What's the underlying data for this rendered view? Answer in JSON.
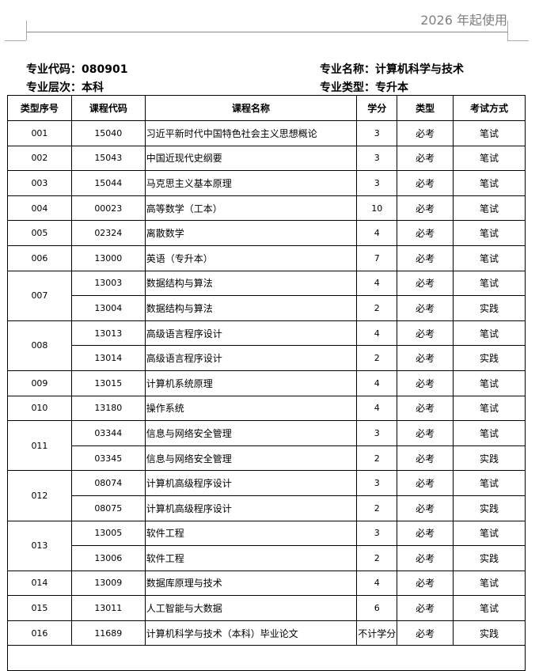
{
  "header": {
    "text": "2026 年起使用"
  },
  "meta": {
    "code_label": "专业代码：",
    "code": "080901",
    "name_label": "专业名称：",
    "name": "计算机科学与技术",
    "level_label": "专业层次：",
    "level": "本科",
    "type_label": "专业类型：",
    "type": "专升本"
  },
  "table": {
    "columns": [
      "类型序号",
      "课程代码",
      "课程名称",
      "学分",
      "类型",
      "考试方式"
    ],
    "groups": [
      {
        "seq": "001",
        "courses": [
          {
            "code": "15040",
            "name": "习近平新时代中国特色社会主义思想概论",
            "credit": "3",
            "type": "必考",
            "exam": "笔试"
          }
        ]
      },
      {
        "seq": "002",
        "courses": [
          {
            "code": "15043",
            "name": "中国近现代史纲要",
            "credit": "3",
            "type": "必考",
            "exam": "笔试"
          }
        ]
      },
      {
        "seq": "003",
        "courses": [
          {
            "code": "15044",
            "name": "马克思主义基本原理",
            "credit": "3",
            "type": "必考",
            "exam": "笔试"
          }
        ]
      },
      {
        "seq": "004",
        "courses": [
          {
            "code": "00023",
            "name": "高等数学（工本）",
            "credit": "10",
            "type": "必考",
            "exam": "笔试"
          }
        ]
      },
      {
        "seq": "005",
        "courses": [
          {
            "code": "02324",
            "name": "离散数学",
            "credit": "4",
            "type": "必考",
            "exam": "笔试"
          }
        ]
      },
      {
        "seq": "006",
        "courses": [
          {
            "code": "13000",
            "name": "英语（专升本）",
            "credit": "7",
            "type": "必考",
            "exam": "笔试"
          }
        ]
      },
      {
        "seq": "007",
        "courses": [
          {
            "code": "13003",
            "name": "数据结构与算法",
            "credit": "4",
            "type": "必考",
            "exam": "笔试"
          },
          {
            "code": "13004",
            "name": "数据结构与算法",
            "credit": "2",
            "type": "必考",
            "exam": "实践"
          }
        ]
      },
      {
        "seq": "008",
        "courses": [
          {
            "code": "13013",
            "name": "高级语言程序设计",
            "credit": "4",
            "type": "必考",
            "exam": "笔试"
          },
          {
            "code": "13014",
            "name": "高级语言程序设计",
            "credit": "2",
            "type": "必考",
            "exam": "实践"
          }
        ]
      },
      {
        "seq": "009",
        "courses": [
          {
            "code": "13015",
            "name": "计算机系统原理",
            "credit": "4",
            "type": "必考",
            "exam": "笔试"
          }
        ]
      },
      {
        "seq": "010",
        "courses": [
          {
            "code": "13180",
            "name": "操作系统",
            "credit": "4",
            "type": "必考",
            "exam": "笔试"
          }
        ]
      },
      {
        "seq": "011",
        "courses": [
          {
            "code": "03344",
            "name": "信息与网络安全管理",
            "credit": "3",
            "type": "必考",
            "exam": "笔试"
          },
          {
            "code": "03345",
            "name": "信息与网络安全管理",
            "credit": "2",
            "type": "必考",
            "exam": "实践"
          }
        ]
      },
      {
        "seq": "012",
        "courses": [
          {
            "code": "08074",
            "name": "计算机高级程序设计",
            "credit": "3",
            "type": "必考",
            "exam": "笔试"
          },
          {
            "code": "08075",
            "name": "计算机高级程序设计",
            "credit": "2",
            "type": "必考",
            "exam": "实践"
          }
        ]
      },
      {
        "seq": "013",
        "courses": [
          {
            "code": "13005",
            "name": "软件工程",
            "credit": "3",
            "type": "必考",
            "exam": "笔试"
          },
          {
            "code": "13006",
            "name": "软件工程",
            "credit": "2",
            "type": "必考",
            "exam": "实践"
          }
        ]
      },
      {
        "seq": "014",
        "courses": [
          {
            "code": "13009",
            "name": "数据库原理与技术",
            "credit": "4",
            "type": "必考",
            "exam": "笔试"
          }
        ]
      },
      {
        "seq": "015",
        "courses": [
          {
            "code": "13011",
            "name": "人工智能与大数据",
            "credit": "6",
            "type": "必考",
            "exam": "笔试"
          }
        ]
      },
      {
        "seq": "016",
        "courses": [
          {
            "code": "11689",
            "name": "计算机科学与技术（本科）毕业论文",
            "credit": "不计学分",
            "type": "必考",
            "exam": "实践"
          }
        ]
      }
    ]
  }
}
